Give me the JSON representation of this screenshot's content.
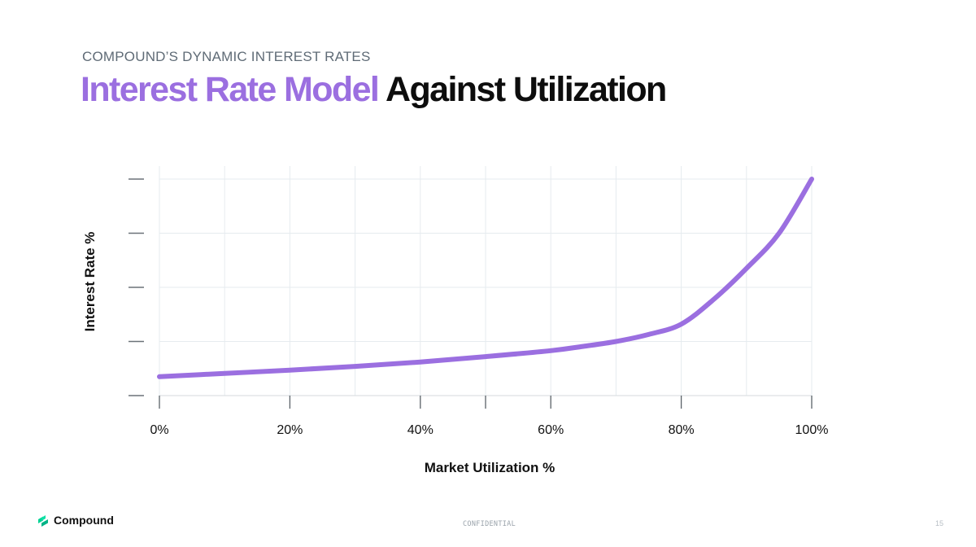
{
  "slide": {
    "eyebrow": "COMPOUND’S DYNAMIC INTEREST RATES",
    "title_accent": "Interest Rate Model",
    "title_rest": "Against Utilization",
    "accent_color": "#9b6fe0"
  },
  "chart_data": {
    "type": "line",
    "xlabel": "Market Utilization %",
    "ylabel": "Interest Rate %",
    "x_tick_labels": [
      "0%",
      "20%",
      "40%",
      "60%",
      "80%",
      "100%"
    ],
    "x_ticks": [
      0,
      20,
      40,
      60,
      80,
      100
    ],
    "xlim": [
      0,
      100
    ],
    "y_tick_labels_shown": false,
    "ylim": [
      0,
      4
    ],
    "grid": true,
    "series": [
      {
        "color": "#9b6fe0",
        "x": [
          0,
          10,
          20,
          30,
          40,
          50,
          60,
          65,
          70,
          75,
          80,
          85,
          90,
          95,
          100
        ],
        "y": [
          0.35,
          0.41,
          0.47,
          0.54,
          0.62,
          0.72,
          0.83,
          0.91,
          1.0,
          1.13,
          1.32,
          1.78,
          2.35,
          3.0,
          4.0
        ]
      }
    ]
  },
  "footer": {
    "brand": "Compound",
    "logo_icon": "compound-logo-icon",
    "confidential": "CONFIDENTIAL",
    "page_number": "15"
  }
}
